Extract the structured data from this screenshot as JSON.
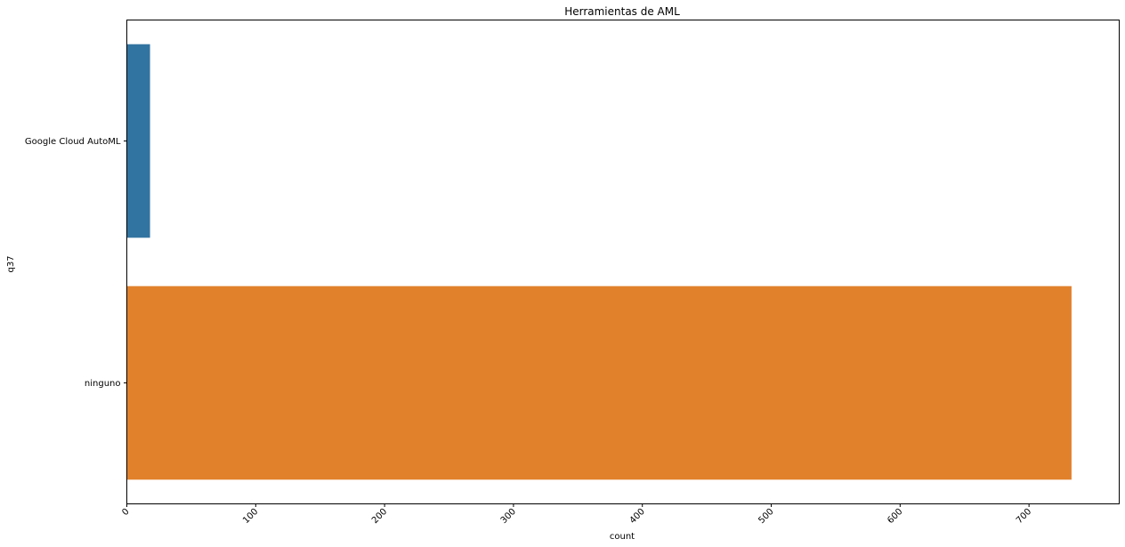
{
  "chart_data": {
    "type": "bar",
    "orientation": "horizontal",
    "title": "Herramientas de AML",
    "xlabel": "count",
    "ylabel": "q37",
    "categories": [
      "Google Cloud AutoML",
      "ninguno"
    ],
    "values": [
      18,
      733
    ],
    "colors": [
      "#3274a1",
      "#e1812c"
    ],
    "xlim": [
      0,
      770
    ],
    "xticks": [
      0,
      100,
      200,
      300,
      400,
      500,
      600,
      700
    ],
    "xtick_labels": [
      "0",
      "100",
      "200",
      "300",
      "400",
      "500",
      "600",
      "700"
    ],
    "xtick_rotation_deg": 45,
    "grid": false,
    "legend": "none"
  }
}
